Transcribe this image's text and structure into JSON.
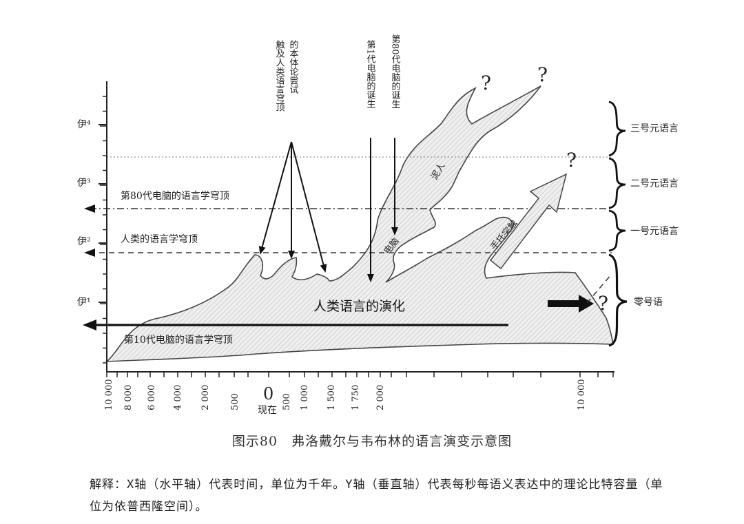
{
  "y_axis": {
    "labels": [
      "伊⁴",
      "伊³",
      "伊²",
      "伊¹"
    ]
  },
  "x_axis": {
    "tick_labels": [
      "10 000",
      "8 000",
      "6 000",
      "4 000",
      "2 000",
      "500",
      "0",
      "500",
      "1 000",
      "1 500",
      "1 750",
      "2 000",
      "10 000"
    ],
    "now_label": "现在"
  },
  "levels": {
    "comp80_ceiling": "第80代电脑的语言学穹顶",
    "human_ceiling": "人类的语言学穹顶",
    "comp10_ceiling": "第10代电脑的语言学穹顶"
  },
  "annotations": {
    "ontology_attempt": [
      "触及人类语言穹顶",
      "的本体论尝试"
    ],
    "first_computer": "第1代电脑的诞生",
    "comp80_birth": "第80代电脑的诞生",
    "main_label": "人类语言的演化",
    "mud_people": "泥人",
    "computer": "电脑",
    "shuotuo": "手托突触"
  },
  "brackets": {
    "level3": "三号元语言",
    "level2": "二号元语言",
    "level1": "一号元语言",
    "level0": "零号语"
  },
  "question_mark": "?",
  "caption": "图示80　弗洛戴尔与韦布林的语言演变示意图",
  "note": "解释：X轴（水平轴）代表时间，单位为千年。Y轴（垂直轴）代表每秒每语义表达中的理论比特容量（单位为依普西隆空间）。"
}
